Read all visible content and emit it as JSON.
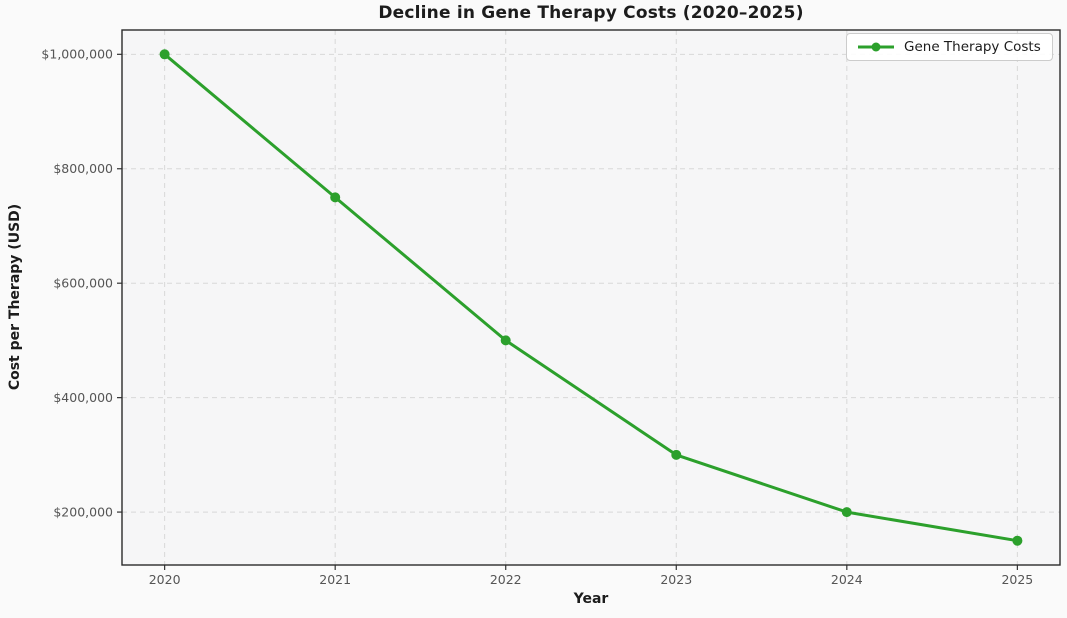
{
  "chart_data": {
    "type": "line",
    "title": "Decline in Gene Therapy Costs (2020–2025)",
    "xlabel": "Year",
    "ylabel": "Cost per Therapy (USD)",
    "x": [
      2020,
      2021,
      2022,
      2023,
      2024,
      2025
    ],
    "series": [
      {
        "name": "Gene Therapy Costs",
        "values": [
          1000000,
          750000,
          500000,
          300000,
          200000,
          150000
        ],
        "color": "#2ca02c",
        "marker": "circle"
      }
    ],
    "xlim": [
      2019.75,
      2025.25
    ],
    "ylim": [
      107500,
      1042500
    ],
    "xticks": {
      "values": [
        2020,
        2021,
        2022,
        2023,
        2024,
        2025
      ],
      "labels": [
        "2020",
        "2021",
        "2022",
        "2023",
        "2024",
        "2025"
      ]
    },
    "yticks": {
      "values": [
        200000,
        400000,
        600000,
        800000,
        1000000
      ],
      "labels": [
        "$200,000",
        "$400,000",
        "$600,000",
        "$800,000",
        "$1,000,000"
      ]
    },
    "grid": {
      "on": true,
      "style": "dashed"
    },
    "legend": {
      "position": "upper right",
      "entries": [
        "Gene Therapy Costs"
      ]
    }
  },
  "styles": {
    "line_color": "#2ca02c",
    "grid_color": "#d8d8d8",
    "figure_bg": "#fafafa",
    "axes_bg": "#f6f6f7",
    "spine_color": "#2b2b2b",
    "tick_color": "#333333",
    "tick_label_color": "#555555",
    "text_color": "#1c1c1c"
  }
}
